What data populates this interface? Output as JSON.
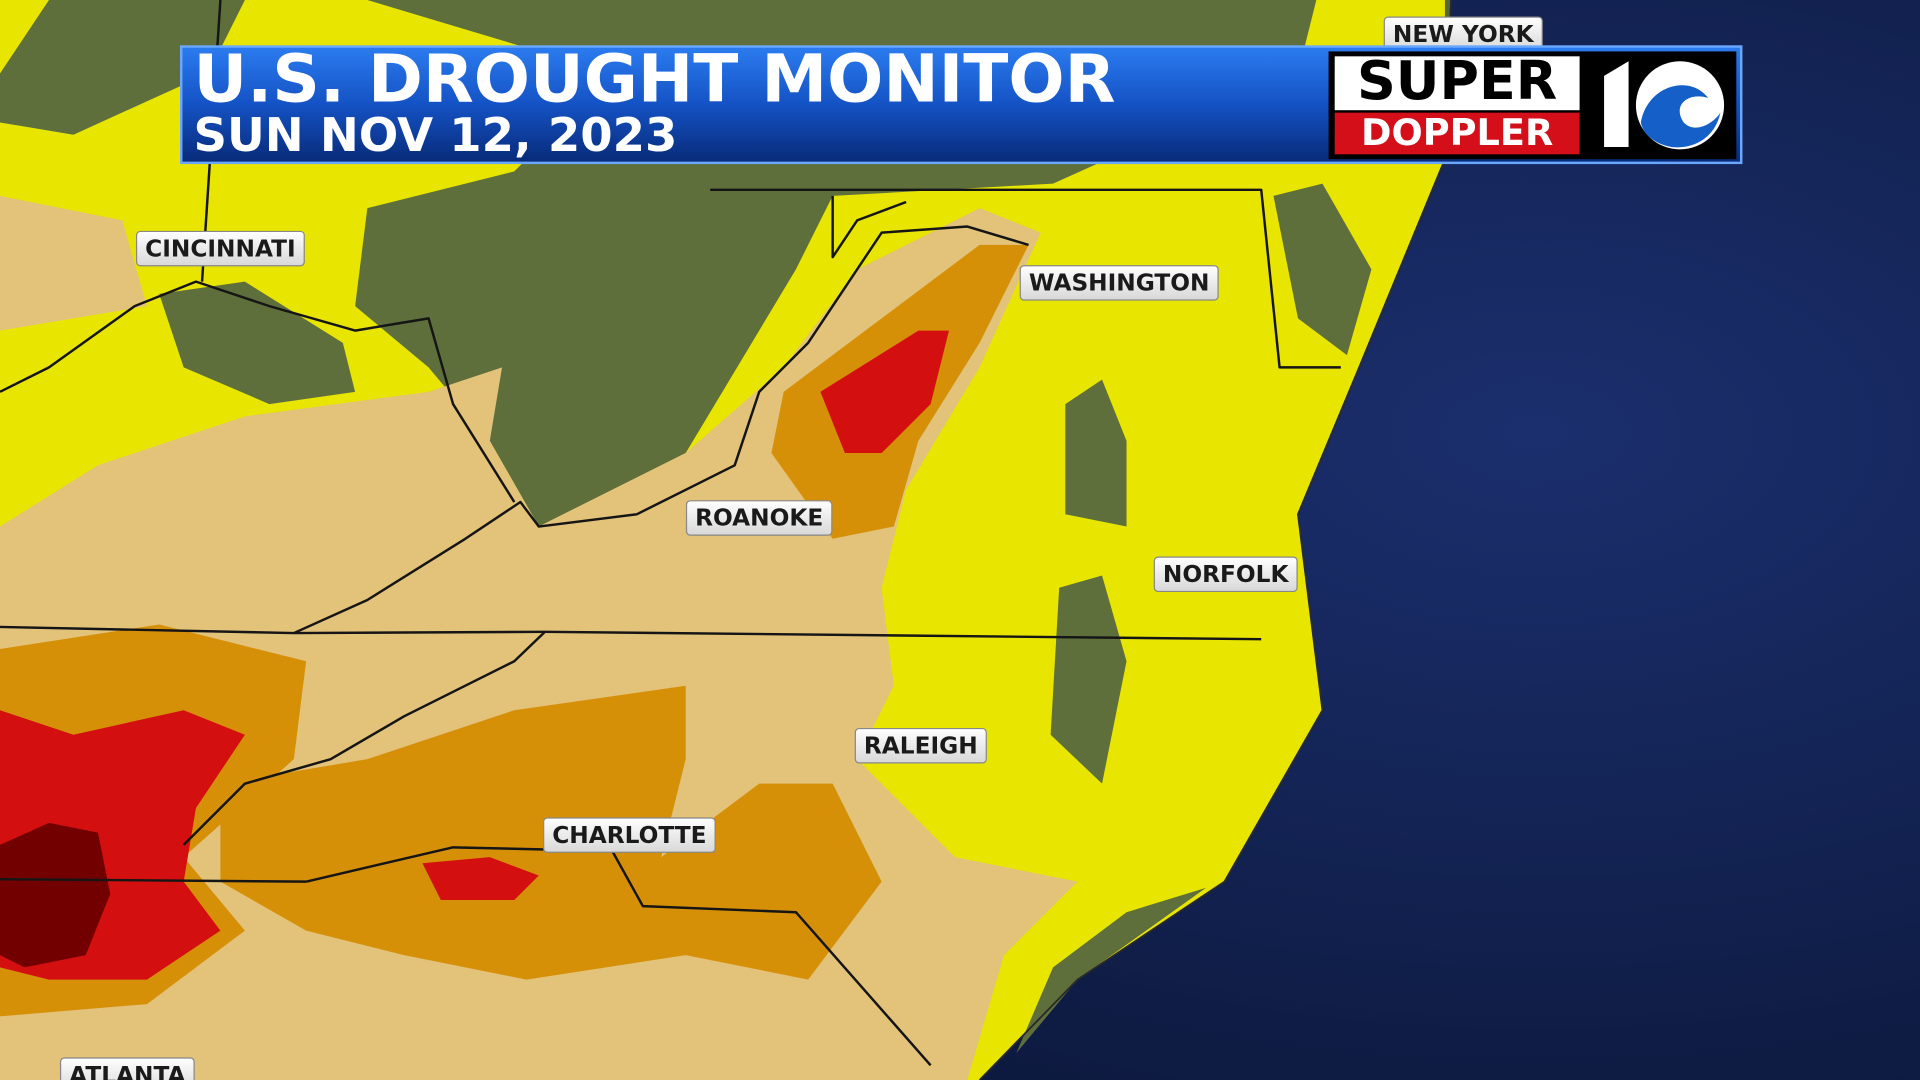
{
  "header": {
    "title": "U.S. DROUGHT MONITOR",
    "date": "SUN NOV 12, 2023"
  },
  "logo": {
    "line1": "SUPER",
    "line2": "DOPPLER"
  },
  "cities": [
    {
      "label": "NEW YORK"
    },
    {
      "label": "CINCINNATI"
    },
    {
      "label": "WASHINGTON"
    },
    {
      "label": "ROANOKE"
    },
    {
      "label": "NORFOLK"
    },
    {
      "label": "RALEIGH"
    },
    {
      "label": "CHARLOTTE"
    },
    {
      "label": "ATLANTA"
    }
  ]
}
